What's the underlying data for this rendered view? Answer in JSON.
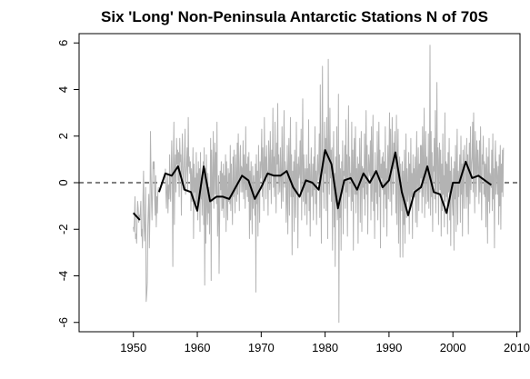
{
  "chart_data": {
    "type": "line",
    "title": "Six 'Long' Non-Peninsula Antarctic Stations N of 70S",
    "xlabel": "",
    "ylabel": "",
    "xlim": [
      1941.5,
      2010.5
    ],
    "ylim": [
      -6.4,
      6.4
    ],
    "x_ticks": [
      1950,
      1960,
      1970,
      1980,
      1990,
      2000,
      2010
    ],
    "y_ticks": [
      -6,
      -4,
      -2,
      0,
      2,
      4,
      6
    ],
    "reference_line": {
      "y": 0,
      "style": "dashed"
    },
    "grid": false,
    "colors": {
      "monthly": "#b3b3b3",
      "annual": "#000000",
      "reference": "#000000"
    },
    "series": [
      {
        "kind": "monthly",
        "x_start": 1950.0,
        "x_step": 0.08333,
        "values": [
          -1.9,
          -2.1,
          -1.6,
          -0.6,
          -2.4,
          -2.2,
          -2.6,
          -1.6,
          -0.8,
          -1.1,
          -1.7,
          -1.4,
          -1.6,
          -1.2,
          -0.8,
          -2.3,
          -2.0,
          -2.8,
          -0.6,
          0.5,
          -1.7,
          -2.5,
          -1.8,
          -0.2,
          -5.1,
          -4.8,
          -4.3,
          -1.9,
          -1.2,
          -0.5,
          -2.8,
          -1.4,
          2.2,
          0.4,
          -0.9,
          -1.6,
          -0.2,
          0.9,
          0.6,
          0.9,
          -0.8,
          -1.4,
          0.3,
          -1.9,
          -0.6,
          -1.3,
          -0.4,
          -0.2,
          null,
          null,
          null,
          null,
          null,
          null,
          null,
          null,
          null,
          null,
          null,
          null,
          0.6,
          -0.4,
          -1.1,
          -0.2,
          0.3,
          -1.3,
          -0.1,
          -0.7,
          1.2,
          -0.3,
          -0.8,
          0.5,
          1.8,
          0.4,
          -3.6,
          0.9,
          2.6,
          -1.8,
          0.6,
          1.2,
          -0.4,
          1.9,
          0.8,
          1.4,
          0.1,
          1.3,
          -0.6,
          1.9,
          0.9,
          1.2,
          -1.4,
          0.6,
          2.1,
          0.5,
          -0.3,
          0.6,
          1.2,
          2.3,
          -0.5,
          0.4,
          0.9,
          1.5,
          -0.3,
          2.8,
          0.7,
          1.1,
          0.4,
          0.9,
          -1.2,
          0.6,
          -0.8,
          0.3,
          1.5,
          -2.4,
          0.8,
          -0.4,
          0.2,
          -1.1,
          1.3,
          -0.9,
          0.4,
          -1.6,
          0.9,
          -0.8,
          0.6,
          -2.1,
          1.3,
          -0.7,
          0.2,
          -1.4,
          -0.3,
          0.9,
          -1.8,
          1.5,
          -4.4,
          0.6,
          -2.6,
          1.2,
          -0.9,
          -1.8,
          0.4,
          -1.3,
          -0.2,
          -2.2,
          -0.5,
          1.9,
          -4.2,
          1.4,
          -0.3,
          -0.8,
          2.2,
          -1.1,
          0.6,
          1.7,
          -0.5,
          1.3,
          -0.9,
          2.6,
          -2.3,
          -1.4,
          0.3,
          -3.9,
          -1.6,
          0.5,
          -0.3,
          0.9,
          -1.2,
          0.4,
          -1.1,
          0.8,
          -1.5,
          0.3,
          -0.7,
          1.2,
          -2.1,
          0.9,
          -0.4,
          -1.6,
          0.6,
          -0.8,
          0.4,
          -0.9,
          1.6,
          -1.2,
          0.8,
          -0.3,
          -1.8,
          1.1,
          -0.6,
          1.4,
          -0.2,
          -1.3,
          1.2,
          0.3,
          -0.8,
          1.7,
          -0.5,
          2.1,
          0.4,
          -1.2,
          0.9,
          1.6,
          -0.4,
          0.7,
          0.6,
          -0.4,
          1.8,
          -0.7,
          1.2,
          0.3,
          -1.1,
          2.4,
          -0.3,
          0.8,
          -0.6,
          1.1,
          -0.8,
          1.3,
          -2.4,
          0.5,
          -1.6,
          0.9,
          -0.4,
          -2.2,
          0.7,
          -1.1,
          0.3,
          -0.6,
          -1.4,
          0.8,
          -4.7,
          1.2,
          -0.9,
          0.5,
          -2.3,
          1.6,
          -0.2,
          -1.7,
          0.9,
          0.2,
          0.9,
          2.3,
          -0.6,
          1.5,
          0.4,
          -1.2,
          2.8,
          0.2,
          1.1,
          -0.7,
          1.6,
          0.5,
          0.5,
          -1.4,
          1.8,
          0.9,
          -0.3,
          2.2,
          0.6,
          -0.9,
          1.4,
          0.3,
          3.2,
          -0.2,
          1.1,
          -0.6,
          2.6,
          0.4,
          -1.3,
          1.7,
          0.8,
          3.4,
          -0.5,
          1.2,
          0.2,
          -0.4,
          1.5,
          0.3,
          -1.1,
          2.4,
          0.6,
          -0.8,
          1.3,
          3.1,
          -0.2,
          0.9,
          0.4,
          -1.7,
          -0.8,
          1.6,
          -2.2,
          0.7,
          1.9,
          -1.4,
          0.4,
          2.8,
          -0.6,
          1.2,
          -3.1,
          0.5,
          -0.6,
          0.9,
          -2.1,
          1.4,
          0.3,
          -1.5,
          2.6,
          -0.4,
          0.8,
          -2.8,
          1.1,
          0.2,
          0.4,
          1.8,
          -0.5,
          2.3,
          -1.6,
          0.9,
          3.6,
          -0.8,
          1.2,
          0.3,
          -1.4,
          0.6,
          -0.9,
          1.2,
          -1.8,
          0.6,
          -0.4,
          2.7,
          -1.2,
          0.8,
          -2.3,
          0.4,
          1.5,
          -0.6,
          -0.5,
          0.8,
          -1.6,
          1.1,
          -0.3,
          2.4,
          -0.9,
          0.5,
          -1.8,
          0.3,
          1.2,
          0.1,
          0.6,
          2.1,
          -1.5,
          4.2,
          0.2,
          -2.6,
          1.8,
          5.0,
          -0.4,
          1.3,
          -1.1,
          2.6,
          0.4,
          1.9,
          -1.2,
          2.8,
          0.6,
          -2.4,
          5.3,
          1.1,
          -0.5,
          3.2,
          0.2,
          1.4,
          -0.8,
          1.5,
          -2.9,
          0.6,
          2.2,
          -1.9,
          0.4,
          -3.6,
          1.1,
          -0.6,
          2.4,
          -1.6,
          -0.9,
          3.8,
          -6.0,
          1.2,
          -1.5,
          0.6,
          -2.9,
          0.9,
          -0.3,
          1.8,
          -2.2,
          0.5,
          0.3,
          1.6,
          -1.1,
          2.7,
          -0.4,
          1.2,
          -2.3,
          0.8,
          3.3,
          -0.6,
          1.1,
          0.2,
          0.4,
          -1.2,
          2.6,
          -0.8,
          1.4,
          -2.9,
          0.7,
          1.9,
          -0.5,
          2.4,
          -1.3,
          0.6,
          -0.5,
          1.1,
          -2.6,
          0.8,
          -0.3,
          1.9,
          -1.7,
          0.4,
          2.2,
          -2.1,
          0.7,
          -0.2,
          0.6,
          -0.7,
          2.1,
          -1.4,
          0.9,
          3.1,
          -0.5,
          1.6,
          -2.2,
          0.3,
          1.2,
          0.5,
          0.3,
          1.8,
          -1.6,
          2.4,
          -0.8,
          0.7,
          2.9,
          -1.2,
          0.5,
          -2.4,
          1.3,
          -0.4,
          0.5,
          -0.9,
          2.2,
          -1.6,
          1.1,
          2.6,
          -0.6,
          1.4,
          -2.8,
          0.8,
          0.2,
          1.1,
          -0.3,
          1.3,
          -1.9,
          0.9,
          -0.5,
          2.4,
          -1.1,
          0.6,
          -2.3,
          0.4,
          1.6,
          -0.7,
          1.2,
          3.0,
          -0.8,
          2.3,
          0.4,
          -1.4,
          2.8,
          1.1,
          -0.5,
          1.7,
          0.6,
          2.2,
          0.6,
          -1.3,
          2.9,
          -1.8,
          0.9,
          2.3,
          -2.6,
          0.4,
          1.1,
          -3.2,
          0.8,
          -0.4,
          -1.2,
          0.9,
          -3.2,
          0.5,
          -1.8,
          1.4,
          -2.6,
          0.3,
          2.1,
          -1.5,
          0.6,
          -0.8,
          -0.4,
          1.3,
          -2.2,
          0.8,
          -1.1,
          1.9,
          -0.6,
          0.4,
          -2.4,
          1.2,
          -0.3,
          0.6,
          -0.6,
          1.1,
          -1.7,
          0.5,
          2.2,
          -1.9,
          0.3,
          1.5,
          -1.2,
          0.8,
          -0.4,
          1.6,
          0.2,
          1.6,
          -1.3,
          2.4,
          -0.6,
          0.9,
          3.2,
          -1.5,
          0.4,
          2.2,
          -0.9,
          1.1,
          0.3,
          -0.8,
          2.1,
          -1.1,
          0.6,
          5.9,
          -1.4,
          2.2,
          -0.6,
          1.3,
          -2.1,
          0.7,
          0.5,
          1.9,
          -0.7,
          3.1,
          -1.3,
          0.6,
          4.3,
          -0.4,
          1.5,
          -1.8,
          0.9,
          1.7,
          -0.3,
          1.4,
          -2.3,
          0.8,
          -1.2,
          2.1,
          -0.5,
          0.3,
          -1.9,
          3.0,
          -0.8,
          0.9,
          -0.6,
          0.8,
          -2.2,
          1.3,
          -0.4,
          1.9,
          -1.6,
          0.5,
          -2.7,
          1.1,
          0.3,
          -0.9,
          -1.4,
          0.6,
          -2.9,
          0.9,
          -0.7,
          1.6,
          -2.1,
          0.4,
          2.3,
          -1.8,
          0.5,
          -0.6,
          0.4,
          1.2,
          -1.7,
          2.0,
          -0.5,
          0.8,
          -2.3,
          1.4,
          0.2,
          -1.1,
          1.6,
          0.6,
          0.3,
          -1.1,
          1.9,
          -0.6,
          1.2,
          -2.2,
          0.5,
          1.7,
          -0.9,
          2.4,
          -0.3,
          0.8,
          1.1,
          2.6,
          -0.4,
          3.0,
          0.6,
          -1.3,
          2.2,
          0.9,
          -0.6,
          1.8,
          0.3,
          1.4,
          0.6,
          -0.9,
          1.8,
          -0.4,
          2.4,
          0.3,
          -1.6,
          1.2,
          0.8,
          2.0,
          -0.5,
          0.9,
          -0.6,
          0.8,
          -1.9,
          1.5,
          0.3,
          -2.6,
          1.1,
          -0.8,
          1.9,
          -1.3,
          0.4,
          0.2,
          -0.2,
          1.4,
          -1.2,
          2.1,
          -0.7,
          0.6,
          -2.8,
          1.0,
          1.8,
          -0.5,
          0.9,
          0.3,
          -0.5,
          0.7,
          -1.8,
          1.2,
          -1.0,
          1.6,
          -2.0,
          0.8,
          -0.4,
          1.4,
          -0.6,
          1.5
        ]
      },
      {
        "kind": "annual",
        "x": [
          1950,
          1951,
          1954,
          1955,
          1956,
          1957,
          1958,
          1959,
          1960,
          1961,
          1962,
          1963,
          1964,
          1965,
          1966,
          1967,
          1968,
          1969,
          1970,
          1971,
          1972,
          1973,
          1974,
          1975,
          1976,
          1977,
          1978,
          1979,
          1980,
          1981,
          1982,
          1983,
          1984,
          1985,
          1986,
          1987,
          1988,
          1989,
          1990,
          1991,
          1992,
          1993,
          1994,
          1995,
          1996,
          1997,
          1998,
          1999,
          2000,
          2001,
          2002,
          2003,
          2004,
          2005,
          2006
        ],
        "values": [
          -1.3,
          -1.6,
          -0.4,
          0.4,
          0.3,
          0.7,
          -0.3,
          -0.4,
          -1.2,
          0.7,
          -0.8,
          -0.6,
          -0.6,
          -0.7,
          -0.2,
          0.3,
          0.1,
          -0.7,
          -0.2,
          0.4,
          0.3,
          0.3,
          0.5,
          -0.2,
          -0.6,
          0.1,
          0.0,
          -0.3,
          1.4,
          0.8,
          -1.1,
          0.1,
          0.2,
          -0.3,
          0.4,
          0.0,
          0.5,
          -0.2,
          0.1,
          1.3,
          -0.4,
          -1.4,
          -0.4,
          -0.2,
          0.7,
          -0.4,
          -0.5,
          -1.3,
          0.0,
          0.0,
          0.9,
          0.2,
          0.3,
          0.1,
          -0.1
        ],
        "breaks_after": [
          1951
        ]
      }
    ]
  }
}
